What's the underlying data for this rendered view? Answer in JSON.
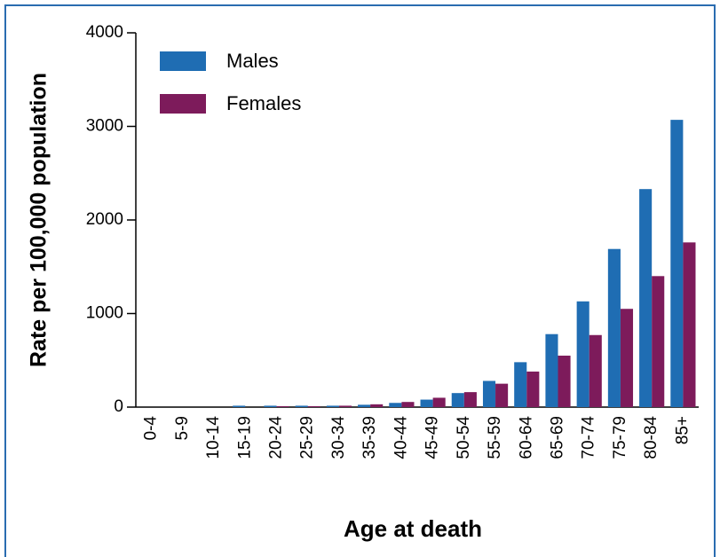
{
  "chart_data": {
    "type": "bar",
    "xlabel": "Age at death",
    "ylabel": "Rate per 100,000 population",
    "categories": [
      "0-4",
      "5-9",
      "10-14",
      "15-19",
      "20-24",
      "25-29",
      "30-34",
      "35-39",
      "40-44",
      "45-49",
      "50-54",
      "55-59",
      "60-64",
      "65-69",
      "70-74",
      "75-79",
      "80-84",
      "85+"
    ],
    "series": [
      {
        "name": "Males",
        "color": "#1f6db3",
        "values": [
          0,
          0,
          0,
          15,
          15,
          15,
          15,
          25,
          45,
          80,
          150,
          280,
          480,
          780,
          1130,
          1690,
          2330,
          3070
        ]
      },
      {
        "name": "Females",
        "color": "#7d1b5b",
        "values": [
          0,
          0,
          0,
          0,
          10,
          10,
          15,
          30,
          55,
          100,
          160,
          250,
          380,
          550,
          770,
          1050,
          1400,
          1760
        ]
      }
    ],
    "ylim": [
      0,
      4000
    ],
    "yticks": [
      0,
      1000,
      2000,
      3000,
      4000
    ],
    "legend": "upper left",
    "grid": false
  }
}
